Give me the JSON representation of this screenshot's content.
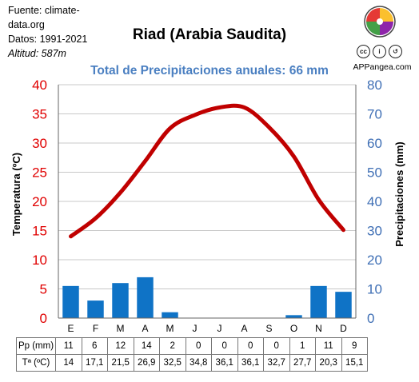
{
  "source": {
    "line1": "Fuente: climate-",
    "line2": "data.org",
    "line3": "Datos: 1991-2021",
    "line4": "Altitud: 587m"
  },
  "brand": {
    "name": "APPangea.com",
    "license_icons": [
      "cc",
      "by",
      "sa"
    ],
    "logo_colors": [
      "#e53935",
      "#fbc02d",
      "#43a047",
      "#8e24aa"
    ]
  },
  "chart_data": {
    "type": "bar",
    "title": "Riad (Arabia Saudita)",
    "subtitle": "Total de Precipitaciones anuales: 66 mm",
    "categories": [
      "E",
      "F",
      "M",
      "A",
      "M",
      "J",
      "J",
      "A",
      "S",
      "O",
      "N",
      "D"
    ],
    "series": [
      {
        "kind": "bar",
        "axis": "right",
        "color": "#0f73c6",
        "values": [
          11,
          6,
          12,
          14,
          2,
          0,
          0,
          0,
          0,
          1,
          11,
          9
        ]
      },
      {
        "kind": "line",
        "axis": "left",
        "color": "#c00000",
        "values": [
          14,
          17.1,
          21.5,
          26.9,
          32.5,
          34.8,
          36.1,
          36.1,
          32.7,
          27.7,
          20.3,
          15.1
        ]
      }
    ],
    "ylabel": "Temperatura (ºC)",
    "y2label": "Precipitaciones (mm)",
    "ylim": [
      0,
      40
    ],
    "y2lim": [
      0,
      80
    ],
    "yticks": [
      0,
      5,
      10,
      15,
      20,
      25,
      30,
      35,
      40
    ],
    "y2ticks": [
      0,
      10,
      20,
      30,
      40,
      50,
      60,
      70,
      80
    ],
    "grid": true,
    "left_axis_color": "#e00000",
    "right_axis_color": "#3f6fb5",
    "subtitle_color": "#4a7fc1"
  },
  "table": {
    "rows": [
      {
        "label": "Pp (mm)",
        "values": [
          "11",
          "6",
          "12",
          "14",
          "2",
          "0",
          "0",
          "0",
          "0",
          "1",
          "11",
          "9"
        ]
      },
      {
        "label": "Tª (ºC)",
        "values": [
          "14",
          "17,1",
          "21,5",
          "26,9",
          "32,5",
          "34,8",
          "36,1",
          "36,1",
          "32,7",
          "27,7",
          "20,3",
          "15,1"
        ]
      }
    ]
  }
}
